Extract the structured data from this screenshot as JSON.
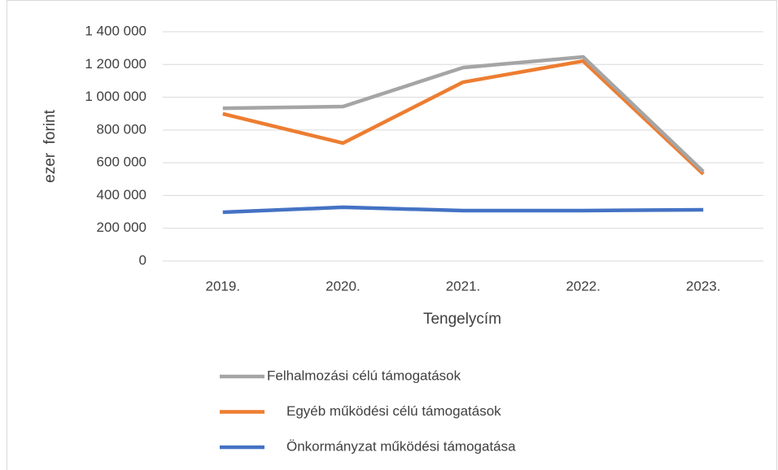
{
  "chart_data": {
    "type": "line",
    "x_label": "Tengelycím",
    "y_label": "ezer  forint",
    "categories": [
      "2019.",
      "2020.",
      "2021.",
      "2022.",
      "2023."
    ],
    "series": [
      {
        "name": "Felhalmozási célú támogatások",
        "color": "#a5a5a5",
        "values": [
          933000,
          943000,
          1181000,
          1246000,
          546000
        ]
      },
      {
        "name": "Egyéb működési célú támogatások",
        "color": "#ed7d31",
        "values": [
          899000,
          720000,
          1092000,
          1221000,
          531000
        ]
      },
      {
        "name": "Önkormányzat működési támogatása",
        "color": "#4472c4",
        "values": [
          298000,
          328000,
          308000,
          308000,
          313000
        ]
      }
    ],
    "ylim": [
      0,
      1400000
    ],
    "yticks": [
      0,
      {
        "value": 200000,
        "label": "200 000"
      },
      {
        "value": 400000,
        "label": "400 000"
      },
      {
        "value": 600000,
        "label": "600 000"
      },
      {
        "value": 800000,
        "label": "800 000"
      },
      {
        "value": 1000000,
        "label": "1 000 000"
      },
      {
        "value": 1200000,
        "label": "1 200 000"
      },
      {
        "value": 1400000,
        "label": "1 400 000"
      }
    ],
    "grid": true,
    "legend": "bottom"
  }
}
